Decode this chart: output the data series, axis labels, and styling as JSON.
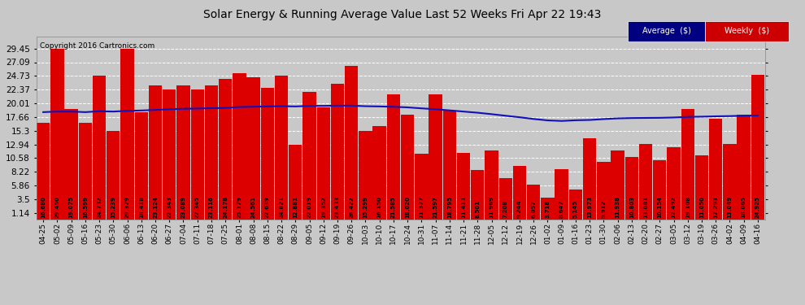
{
  "title": "Solar Energy & Running Average Value Last 52 Weeks Fri Apr 22 19:43",
  "copyright": "Copyright 2016 Cartronics.com",
  "bar_color": "#dd0000",
  "avg_color": "#1111bb",
  "bg_color": "#c8c8c8",
  "plot_bg_color": "#c8c8c8",
  "grid_color": "#ffffff",
  "yticks": [
    1.14,
    3.5,
    5.86,
    8.22,
    10.58,
    12.94,
    15.3,
    17.66,
    20.01,
    22.37,
    24.73,
    27.09,
    29.45
  ],
  "categories": [
    "04-25",
    "05-02",
    "05-09",
    "05-16",
    "05-23",
    "05-30",
    "06-06",
    "06-13",
    "06-20",
    "06-27",
    "07-04",
    "07-11",
    "07-18",
    "07-25",
    "08-01",
    "08-08",
    "08-15",
    "08-22",
    "08-29",
    "09-05",
    "09-12",
    "09-19",
    "09-26",
    "10-03",
    "10-10",
    "10-17",
    "10-24",
    "10-31",
    "11-07",
    "11-14",
    "11-21",
    "11-28",
    "12-05",
    "12-12",
    "12-19",
    "12-26",
    "01-02",
    "01-09",
    "01-16",
    "01-23",
    "01-30",
    "02-06",
    "02-13",
    "02-20",
    "02-27",
    "03-05",
    "03-12",
    "03-19",
    "03-26",
    "04-02",
    "04-09",
    "04-16"
  ],
  "values": [
    16.68,
    29.45,
    19.075,
    16.599,
    24.732,
    15.239,
    29.379,
    18.418,
    23.124,
    22.343,
    23.089,
    22.345,
    23.116,
    24.178,
    25.179,
    24.561,
    22.639,
    24.821,
    12.881,
    22.019,
    19.352,
    23.433,
    26.422,
    15.299,
    16.15,
    21.585,
    18.02,
    11.377,
    21.597,
    18.795,
    11.413,
    8.501,
    11.969,
    7.208,
    9.244,
    6.057,
    3.718,
    8.647,
    5.145,
    13.973,
    9.912,
    11.938,
    10.803,
    13.081,
    10.154,
    12.492,
    19.108,
    11.05,
    17.293,
    13.049,
    18.065,
    24.925
  ],
  "avg_values": [
    18.5,
    18.6,
    18.6,
    18.5,
    18.65,
    18.6,
    18.72,
    18.78,
    18.88,
    19.0,
    19.08,
    19.12,
    19.18,
    19.22,
    19.38,
    19.43,
    19.48,
    19.53,
    19.48,
    19.58,
    19.58,
    19.62,
    19.62,
    19.52,
    19.48,
    19.42,
    19.32,
    19.15,
    19.0,
    18.8,
    18.6,
    18.4,
    18.15,
    17.88,
    17.62,
    17.32,
    17.08,
    16.98,
    17.1,
    17.15,
    17.3,
    17.42,
    17.48,
    17.5,
    17.52,
    17.58,
    17.68,
    17.72,
    17.78,
    17.82,
    17.88,
    17.92
  ]
}
